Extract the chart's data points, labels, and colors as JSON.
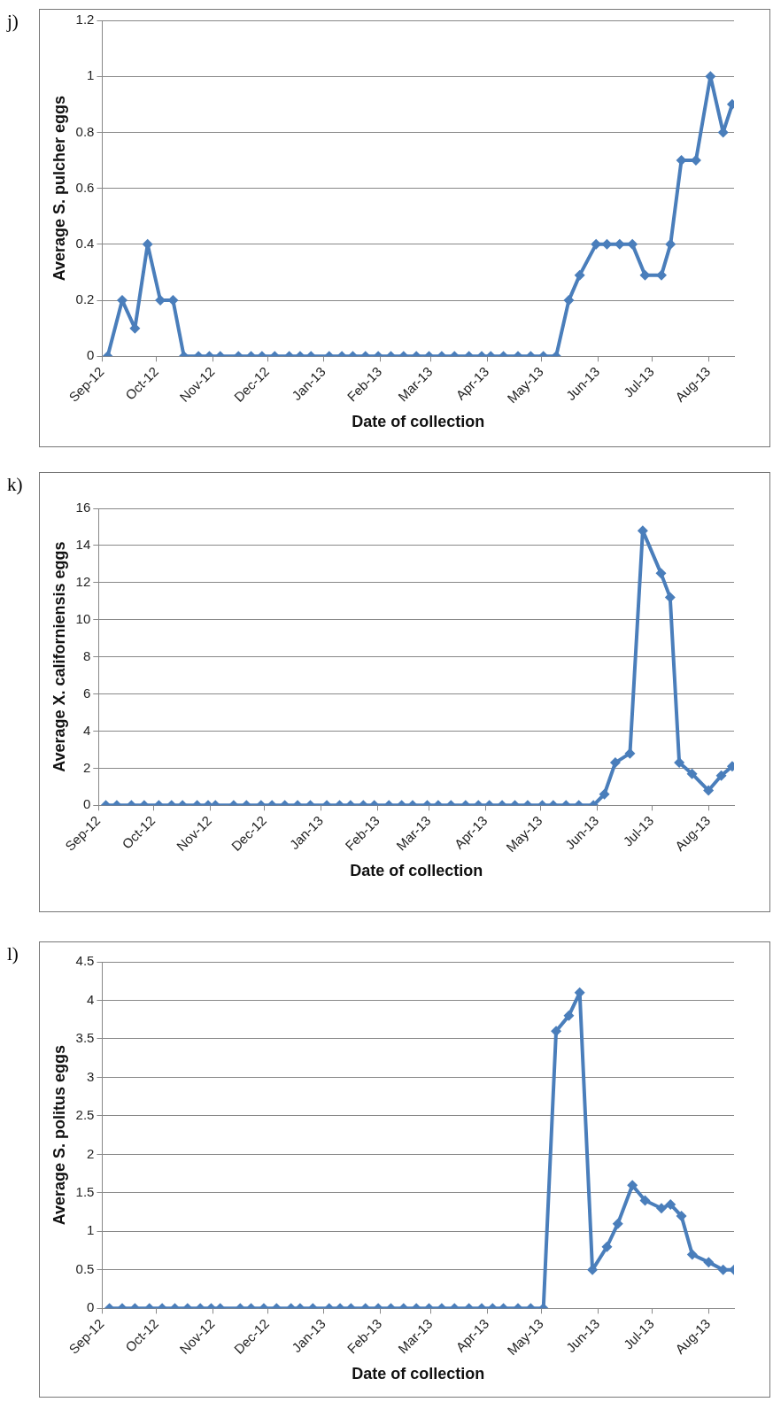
{
  "chart_data": [
    {
      "type": "line",
      "annotations": [
        "j)"
      ],
      "xlabel": "Date of collection",
      "ylabel": "Average S. pulcher eggs",
      "color": "#4a7ebb",
      "marker": "diamond",
      "grid": "y",
      "x": [
        "2012-09-04",
        "2012-09-12",
        "2012-09-19",
        "2012-09-26",
        "2012-10-03",
        "2012-10-10",
        "2012-10-16",
        "2012-10-24",
        "2012-10-30",
        "2012-11-05",
        "2012-11-15",
        "2012-11-22",
        "2012-11-28",
        "2012-12-05",
        "2012-12-13",
        "2012-12-19",
        "2012-12-25",
        "2013-01-04",
        "2013-01-11",
        "2013-01-17",
        "2013-01-24",
        "2013-01-31",
        "2013-02-07",
        "2013-02-14",
        "2013-02-21",
        "2013-02-28",
        "2013-03-07",
        "2013-03-14",
        "2013-03-22",
        "2013-03-29",
        "2013-04-03",
        "2013-04-10",
        "2013-04-18",
        "2013-04-25",
        "2013-05-02",
        "2013-05-09",
        "2013-05-16",
        "2013-05-22",
        "2013-05-31",
        "2013-06-06",
        "2013-06-13",
        "2013-06-20",
        "2013-06-27",
        "2013-07-06",
        "2013-07-11",
        "2013-07-17",
        "2013-07-25",
        "2013-08-02",
        "2013-08-09",
        "2013-08-14"
      ],
      "values": [
        0,
        0.2,
        0.1,
        0.4,
        0.2,
        0.2,
        0,
        0,
        0,
        0,
        0,
        0,
        0,
        0,
        0,
        0,
        0,
        0,
        0,
        0,
        0,
        0,
        0,
        0,
        0,
        0,
        0,
        0,
        0,
        0,
        0,
        0,
        0,
        0,
        0,
        0,
        0.2,
        0.29,
        0.4,
        0.4,
        0.4,
        0.4,
        0.29,
        0.29,
        0.4,
        0.7,
        0.7,
        1,
        0.8,
        0.9
      ],
      "xlim": [
        "2012-09-01",
        "2013-08-15"
      ],
      "xticks": [
        {
          "value": "2012-09-01",
          "label": "Sep-12"
        },
        {
          "value": "2012-10-01",
          "label": "Oct-12"
        },
        {
          "value": "2012-11-01",
          "label": "Nov-12"
        },
        {
          "value": "2012-12-01",
          "label": "Dec-12"
        },
        {
          "value": "2013-01-01",
          "label": "Jan-13"
        },
        {
          "value": "2013-02-01",
          "label": "Feb-13"
        },
        {
          "value": "2013-03-01",
          "label": "Mar-13"
        },
        {
          "value": "2013-04-01",
          "label": "Apr-13"
        },
        {
          "value": "2013-05-01",
          "label": "May-13"
        },
        {
          "value": "2013-06-01",
          "label": "Jun-13"
        },
        {
          "value": "2013-07-01",
          "label": "Jul-13"
        },
        {
          "value": "2013-08-01",
          "label": "Aug-13"
        }
      ],
      "ylim": [
        0,
        1.2
      ],
      "yticks": [
        0,
        0.2,
        0.4,
        0.6,
        0.8,
        1,
        1.2
      ]
    },
    {
      "type": "line",
      "annotations": [
        "k)"
      ],
      "xlabel": "Date of collection",
      "ylabel": "Average X. californiensis eggs",
      "color": "#4a7ebb",
      "marker": "diamond",
      "grid": "y",
      "x": [
        "2012-09-05",
        "2012-09-11",
        "2012-09-19",
        "2012-09-26",
        "2012-10-04",
        "2012-10-11",
        "2012-10-17",
        "2012-10-25",
        "2012-10-31",
        "2012-11-04",
        "2012-11-14",
        "2012-11-21",
        "2012-11-29",
        "2012-12-05",
        "2012-12-12",
        "2012-12-19",
        "2012-12-26",
        "2013-01-04",
        "2013-01-11",
        "2013-01-17",
        "2013-01-24",
        "2013-01-30",
        "2013-02-07",
        "2013-02-14",
        "2013-02-20",
        "2013-02-28",
        "2013-03-06",
        "2013-03-13",
        "2013-03-21",
        "2013-03-28",
        "2013-04-03",
        "2013-04-10",
        "2013-04-17",
        "2013-04-24",
        "2013-05-02",
        "2013-05-08",
        "2013-05-15",
        "2013-05-22",
        "2013-05-30",
        "2013-06-05",
        "2013-06-11",
        "2013-06-19",
        "2013-06-26",
        "2013-07-06",
        "2013-07-11",
        "2013-07-16",
        "2013-07-23",
        "2013-08-01",
        "2013-08-08",
        "2013-08-14"
      ],
      "values": [
        0,
        0,
        0,
        0,
        0,
        0,
        0,
        0,
        0,
        0,
        0,
        0,
        0,
        0,
        0,
        0,
        0,
        0,
        0,
        0,
        0,
        0,
        0,
        0,
        0,
        0,
        0,
        0,
        0,
        0,
        0,
        0,
        0,
        0,
        0,
        0,
        0,
        0,
        0,
        0.6,
        2.3,
        2.8,
        14.8,
        12.5,
        11.2,
        2.3,
        1.7,
        0.8,
        1.6,
        2.1
      ],
      "xlim": [
        "2012-09-01",
        "2013-08-15"
      ],
      "xticks": [
        {
          "value": "2012-09-01",
          "label": "Sep-12"
        },
        {
          "value": "2012-10-01",
          "label": "Oct-12"
        },
        {
          "value": "2012-11-01",
          "label": "Nov-12"
        },
        {
          "value": "2012-12-01",
          "label": "Dec-12"
        },
        {
          "value": "2013-01-01",
          "label": "Jan-13"
        },
        {
          "value": "2013-02-01",
          "label": "Feb-13"
        },
        {
          "value": "2013-03-01",
          "label": "Mar-13"
        },
        {
          "value": "2013-04-01",
          "label": "Apr-13"
        },
        {
          "value": "2013-05-01",
          "label": "May-13"
        },
        {
          "value": "2013-06-01",
          "label": "Jun-13"
        },
        {
          "value": "2013-07-01",
          "label": "Jul-13"
        },
        {
          "value": "2013-08-01",
          "label": "Aug-13"
        }
      ],
      "ylim": [
        0,
        16
      ],
      "yticks": [
        0,
        2,
        4,
        6,
        8,
        10,
        12,
        14,
        16
      ]
    },
    {
      "type": "line",
      "annotations": [
        "l)"
      ],
      "xlabel": "Date of collection",
      "ylabel": "Average S. politus eggs",
      "color": "#4a7ebb",
      "marker": "diamond",
      "grid": "y",
      "x": [
        "2012-09-05",
        "2012-09-12",
        "2012-09-19",
        "2012-09-27",
        "2012-10-04",
        "2012-10-11",
        "2012-10-18",
        "2012-10-25",
        "2012-10-31",
        "2012-11-05",
        "2012-11-16",
        "2012-11-22",
        "2012-11-29",
        "2012-12-06",
        "2012-12-14",
        "2012-12-19",
        "2012-12-26",
        "2013-01-04",
        "2013-01-10",
        "2013-01-16",
        "2013-01-24",
        "2013-01-31",
        "2013-02-07",
        "2013-02-14",
        "2013-02-21",
        "2013-02-28",
        "2013-03-07",
        "2013-03-14",
        "2013-03-22",
        "2013-03-29",
        "2013-04-04",
        "2013-04-10",
        "2013-04-18",
        "2013-04-25",
        "2013-05-02",
        "2013-05-09",
        "2013-05-16",
        "2013-05-22",
        "2013-05-29",
        "2013-06-06",
        "2013-06-12",
        "2013-06-20",
        "2013-06-27",
        "2013-07-06",
        "2013-07-11",
        "2013-07-17",
        "2013-07-23",
        "2013-08-01",
        "2013-08-09",
        "2013-08-15"
      ],
      "values": [
        0,
        0,
        0,
        0,
        0,
        0,
        0,
        0,
        0,
        0,
        0,
        0,
        0,
        0,
        0,
        0,
        0,
        0,
        0,
        0,
        0,
        0,
        0,
        0,
        0,
        0,
        0,
        0,
        0,
        0,
        0,
        0,
        0,
        0,
        0,
        3.6,
        3.8,
        4.1,
        0.5,
        0.8,
        1.1,
        1.6,
        1.4,
        1.3,
        1.35,
        1.2,
        0.7,
        0.6,
        0.5,
        0.5
      ],
      "xlim": [
        "2012-09-01",
        "2013-08-15"
      ],
      "xticks": [
        {
          "value": "2012-09-01",
          "label": "Sep-12"
        },
        {
          "value": "2012-10-01",
          "label": "Oct-12"
        },
        {
          "value": "2012-11-01",
          "label": "Nov-12"
        },
        {
          "value": "2012-12-01",
          "label": "Dec-12"
        },
        {
          "value": "2013-01-01",
          "label": "Jan-13"
        },
        {
          "value": "2013-02-01",
          "label": "Feb-13"
        },
        {
          "value": "2013-03-01",
          "label": "Mar-13"
        },
        {
          "value": "2013-04-01",
          "label": "Apr-13"
        },
        {
          "value": "2013-05-01",
          "label": "May-13"
        },
        {
          "value": "2013-06-01",
          "label": "Jun-13"
        },
        {
          "value": "2013-07-01",
          "label": "Jul-13"
        },
        {
          "value": "2013-08-01",
          "label": "Aug-13"
        }
      ],
      "ylim": [
        0,
        4.5
      ],
      "yticks": [
        0,
        0.5,
        1,
        1.5,
        2,
        2.5,
        3,
        3.5,
        4,
        4.5
      ]
    }
  ]
}
